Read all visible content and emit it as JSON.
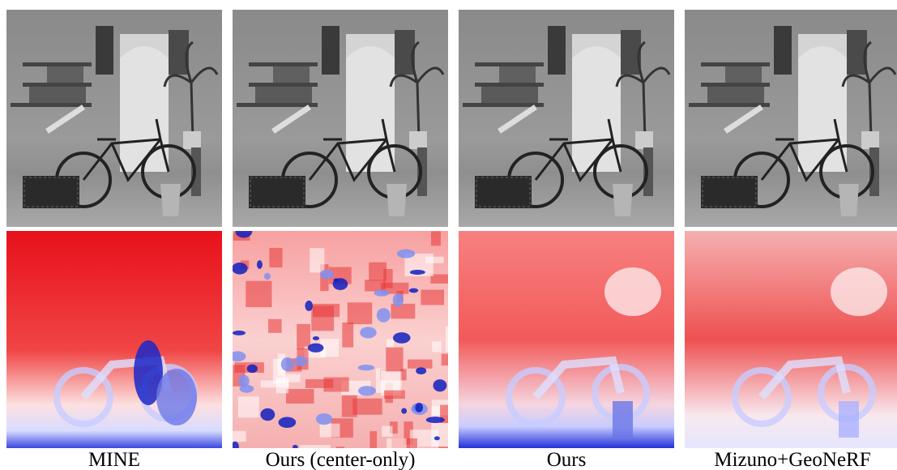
{
  "figure": {
    "captions": [
      "MINE",
      "Ours (center-only)",
      "Ours",
      "Mizuno+GeoNeRF"
    ]
  }
}
